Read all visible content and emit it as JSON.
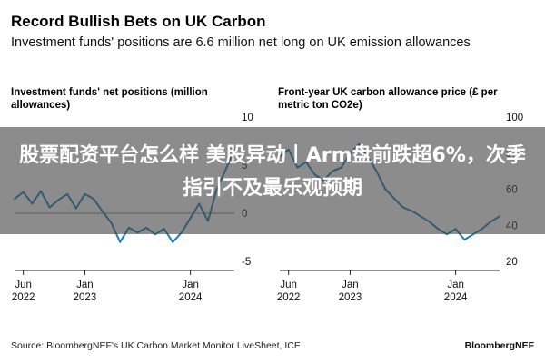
{
  "header": {
    "title": "Record Bullish Bets on UK Carbon",
    "subtitle": "Investment funds' positions are 6.6 million net long on UK emission allowances"
  },
  "overlay": {
    "headline": "股票配资平台怎么样 美股异动丨Arm盘前跌超6%，次季指引不及最乐观预期"
  },
  "footer": {
    "source": "Source: BloombergNEF's UK Carbon Market Monitor LiveSheet, ICE.",
    "brand": "BloombergNEF"
  },
  "colors": {
    "series": "#1b7fb8",
    "axis": "#222222"
  },
  "chart_data": [
    {
      "type": "line",
      "title": "Investment funds' net positions (million allowances)",
      "x_tick_labels": [
        "Jun 2022",
        "Jan 2023",
        "Jan 2024"
      ],
      "y_ticks": [
        10,
        5,
        0,
        -5
      ],
      "ylim": [
        -5,
        10
      ],
      "grid": false,
      "series": [
        {
          "x": [
            "2022-05",
            "2022-06",
            "2022-07",
            "2022-08",
            "2022-09",
            "2022-10",
            "2022-11",
            "2022-12",
            "2023-01",
            "2023-02",
            "2023-03",
            "2023-04",
            "2023-05",
            "2023-06",
            "2023-07",
            "2023-08",
            "2023-09",
            "2023-10",
            "2023-11",
            "2023-12",
            "2024-01",
            "2024-02",
            "2024-03",
            "2024-04",
            "2024-05",
            "2024-06"
          ],
          "values": [
            1.5,
            2.2,
            1.0,
            2.3,
            0.6,
            1.4,
            2.0,
            0.5,
            2.0,
            1.5,
            0.2,
            -1.0,
            -3.0,
            -1.5,
            -2.0,
            -1.5,
            -2.2,
            -1.6,
            -3.0,
            -2.0,
            -0.5,
            1.0,
            -0.8,
            2.5,
            4.5,
            6.6
          ]
        }
      ]
    },
    {
      "type": "line",
      "title": "Front-year UK carbon allowance price (£ per metric ton CO2e)",
      "x_tick_labels": [
        "Jun 2022",
        "Jan 2023",
        "Jan 2024"
      ],
      "y_ticks": [
        100,
        80,
        60,
        40,
        20
      ],
      "ylim": [
        20,
        100
      ],
      "grid": false,
      "series": [
        {
          "x": [
            "2022-05",
            "2022-06",
            "2022-07",
            "2022-08",
            "2022-09",
            "2022-10",
            "2022-11",
            "2022-12",
            "2023-01",
            "2023-02",
            "2023-03",
            "2023-04",
            "2023-05",
            "2023-06",
            "2023-07",
            "2023-08",
            "2023-09",
            "2023-10",
            "2023-11",
            "2023-12",
            "2024-01",
            "2024-02",
            "2024-03",
            "2024-04",
            "2024-05",
            "2024-06"
          ],
          "values": [
            78,
            82,
            72,
            75,
            68,
            65,
            70,
            72,
            80,
            85,
            78,
            70,
            60,
            55,
            50,
            48,
            45,
            42,
            38,
            35,
            38,
            32,
            35,
            38,
            42,
            45
          ]
        }
      ]
    }
  ]
}
